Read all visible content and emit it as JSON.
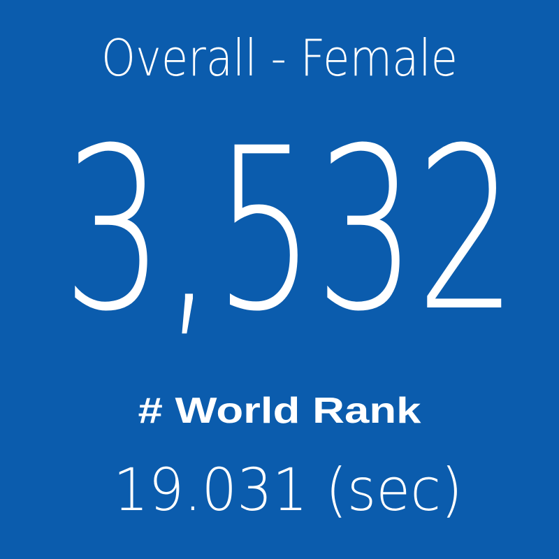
{
  "tile": {
    "title": "Overall - Female",
    "value": "3,532",
    "label": "# World Rank",
    "time": "19.031 (sec)"
  }
}
